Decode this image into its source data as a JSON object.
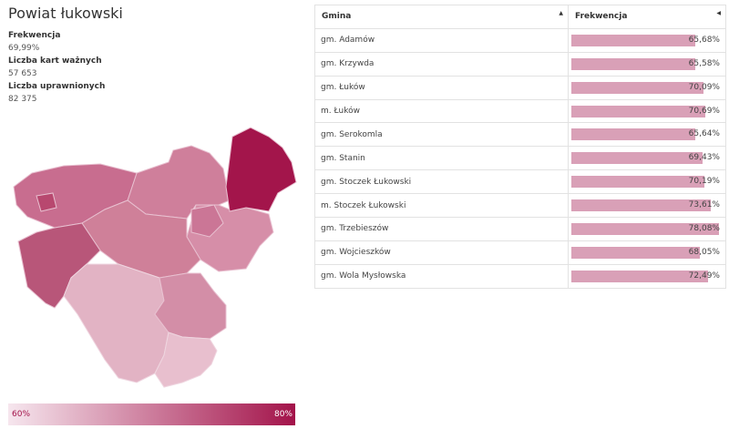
{
  "title": "Powiat łukowski",
  "stats": [
    {
      "label": "Frekwencja",
      "value": "69,99%"
    },
    {
      "label": "Liczba kart ważnych",
      "value": "57 653"
    },
    {
      "label": "Liczba uprawnionych",
      "value": "82 375"
    }
  ],
  "legend": {
    "min": "60%",
    "max": "80%",
    "color_min": "#f6e6ee",
    "color_max": "#a3134a"
  },
  "table": {
    "headers": [
      "Gmina",
      "Frekwencja"
    ],
    "sort_icons": [
      "sort-asc-icon",
      "sort-desc-icon"
    ],
    "rows": [
      {
        "name": "gm. Adamów",
        "value": "65,68%",
        "pct": 65.68
      },
      {
        "name": "gm. Krzywda",
        "value": "65,58%",
        "pct": 65.58
      },
      {
        "name": "gm. Łuków",
        "value": "70,09%",
        "pct": 70.09
      },
      {
        "name": "m. Łuków",
        "value": "70,69%",
        "pct": 70.69
      },
      {
        "name": "gm. Serokomla",
        "value": "65,64%",
        "pct": 65.64
      },
      {
        "name": "gm. Stanin",
        "value": "69,43%",
        "pct": 69.43
      },
      {
        "name": "gm. Stoczek Łukowski",
        "value": "70,19%",
        "pct": 70.19
      },
      {
        "name": "m. Stoczek Łukowski",
        "value": "73,61%",
        "pct": 73.61
      },
      {
        "name": "gm. Trzebieszów",
        "value": "78,08%",
        "pct": 78.08
      },
      {
        "name": "gm. Wojcieszków",
        "value": "68,05%",
        "pct": 68.05
      },
      {
        "name": "gm. Wola Mysłowska",
        "value": "72,49%",
        "pct": 72.49
      }
    ]
  },
  "colors": {
    "bar": "#d9a0b7",
    "accent": "#a3134a"
  }
}
